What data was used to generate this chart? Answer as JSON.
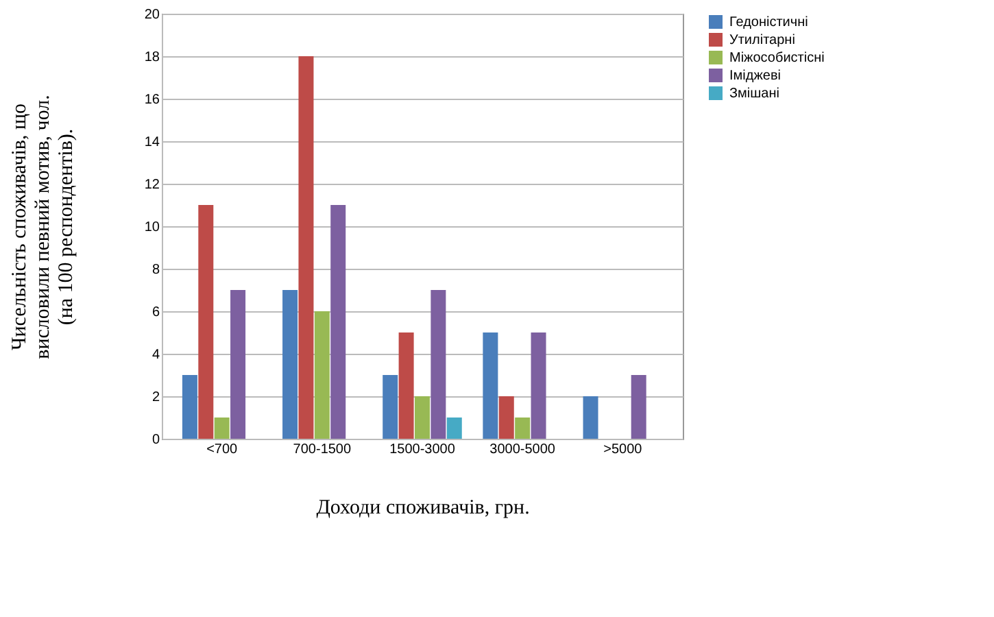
{
  "chart_data": {
    "type": "bar",
    "xlabel": "Доходи споживачів, грн.",
    "ylabel": "Чисельність споживачів, що\nвисловили певний мотив, чол.\n(на 100 респондентів).",
    "categories": [
      "<700",
      "700-1500",
      "1500-3000",
      "3000-5000",
      ">5000"
    ],
    "series": [
      {
        "name": "Гедоністичні",
        "color": "#4a7ebb",
        "values": [
          3,
          7,
          3,
          5,
          2
        ]
      },
      {
        "name": "Утилітарні",
        "color": "#be4b48",
        "values": [
          11,
          18,
          5,
          2,
          0
        ]
      },
      {
        "name": "Міжособистісні",
        "color": "#98b954",
        "values": [
          1,
          6,
          2,
          1,
          0
        ]
      },
      {
        "name": "Іміджеві",
        "color": "#7d60a0",
        "values": [
          7,
          11,
          7,
          5,
          3
        ]
      },
      {
        "name": "Змішані",
        "color": "#46aac5",
        "values": [
          0,
          0,
          1,
          0,
          0
        ]
      }
    ],
    "ylim": [
      0,
      20
    ],
    "yticks": [
      0,
      2,
      4,
      6,
      8,
      10,
      12,
      14,
      16,
      18,
      20
    ],
    "grid": "y",
    "legend": "right"
  }
}
